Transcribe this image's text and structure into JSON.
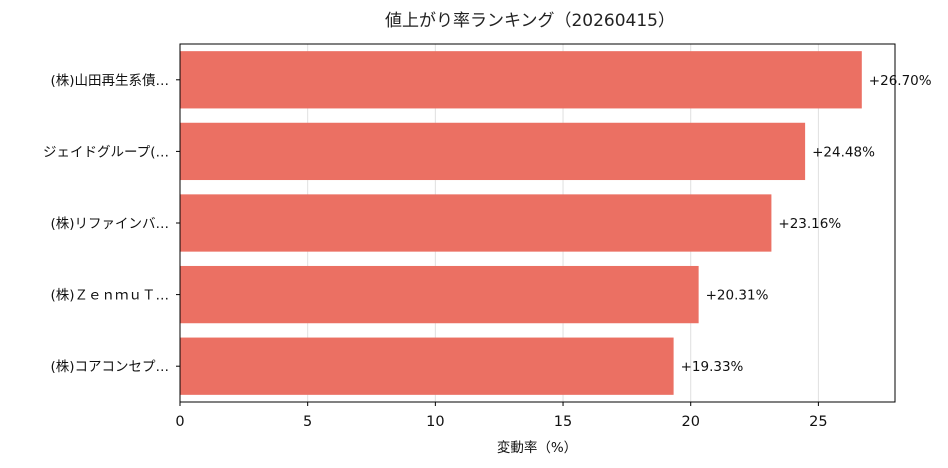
{
  "chart_data": {
    "type": "bar",
    "orientation": "horizontal",
    "title": "値上がり率ランキング（20260415）",
    "xlabel": "変動率（%）",
    "ylabel": "",
    "xlim": [
      0,
      28
    ],
    "xticks": [
      0,
      5,
      10,
      15,
      20,
      25
    ],
    "grid": "vertical",
    "bar_color": "#eb7063",
    "categories": [
      "(株)山田再生系債…",
      "ジェイドグループ(…",
      "(株)リファインバ…",
      "(株)ＺｅｎｍｕＴ…",
      "(株)コアコンセプ…"
    ],
    "values": [
      26.7,
      24.48,
      23.16,
      20.31,
      19.33
    ],
    "value_labels": [
      "+26.70%",
      "+24.48%",
      "+23.16%",
      "+20.31%",
      "+19.33%"
    ]
  }
}
